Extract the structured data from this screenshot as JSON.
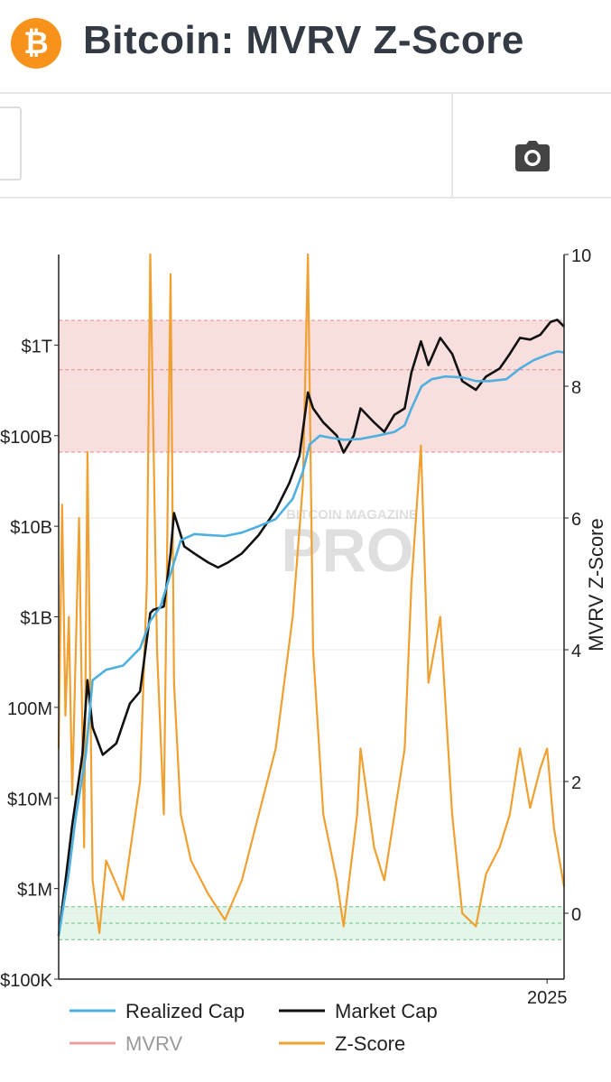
{
  "header": {
    "logo_glyph": "₿",
    "title": "Bitcoin: MVRV Z-Score"
  },
  "toolbar": {
    "camera_icon": "camera-icon"
  },
  "watermark": {
    "line1": "BITCOIN MAGAZINE",
    "line2": "PRO"
  },
  "colors": {
    "realized_cap": "#4fb0e0",
    "market_cap": "#111111",
    "mvrv": "#e8a0a0",
    "z_score": "#f0a030",
    "red_band": "#f9dede",
    "green_band": "#e4f5ea"
  },
  "chart_data": {
    "type": "line",
    "x_tick_labels": [
      "2025"
    ],
    "left_axis": {
      "scale": "log",
      "tick_labels": [
        "$1T",
        "$100B",
        "$10B",
        "$1B",
        "100M",
        "$10M",
        "$1M",
        "$100K"
      ],
      "ylim": [
        100000,
        10000000000000
      ]
    },
    "right_axis": {
      "label": "MVRV Z-Score",
      "tick_labels": [
        "10",
        "8",
        "6",
        "4",
        "2",
        "0"
      ],
      "ylim": [
        -1,
        10
      ]
    },
    "bands": [
      {
        "name": "overvalued",
        "from": 7,
        "to": 9
      },
      {
        "name": "undervalued",
        "from": -0.4,
        "to": 0.1
      }
    ],
    "x_range": [
      2010.6,
      2025.5
    ],
    "series": [
      {
        "name": "Realized Cap",
        "axis": "left",
        "x": [
          2010.6,
          2010.9,
          2011.1,
          2011.4,
          2011.6,
          2012.0,
          2012.5,
          2013.0,
          2013.3,
          2013.6,
          2013.9,
          2014.2,
          2014.6,
          2015.0,
          2015.5,
          2016.0,
          2016.5,
          2017.0,
          2017.5,
          2017.8,
          2018.0,
          2018.3,
          2018.6,
          2019.0,
          2019.5,
          2020.0,
          2020.5,
          2020.8,
          2021.0,
          2021.3,
          2021.6,
          2022.0,
          2022.5,
          2022.9,
          2023.3,
          2023.8,
          2024.2,
          2024.6,
          2025.0,
          2025.3,
          2025.5
        ],
        "y": [
          300000,
          1500000,
          6000000,
          30000000,
          200000000,
          260000000,
          290000000,
          450000000,
          900000000,
          1300000000,
          3000000000,
          7000000000,
          8200000000,
          8000000000,
          7800000000,
          8500000000,
          10000000000,
          12000000000,
          20000000000,
          40000000000,
          80000000000,
          100000000000,
          95000000000,
          90000000000,
          92000000000,
          100000000000,
          110000000000,
          130000000000,
          200000000000,
          350000000000,
          420000000000,
          450000000000,
          440000000000,
          400000000000,
          400000000000,
          420000000000,
          550000000000,
          680000000000,
          780000000000,
          850000000000,
          830000000000
        ]
      },
      {
        "name": "Market Cap",
        "axis": "left",
        "x": [
          2010.6,
          2010.8,
          2011.0,
          2011.3,
          2011.45,
          2011.6,
          2011.9,
          2012.3,
          2012.7,
          2013.0,
          2013.3,
          2013.4,
          2013.7,
          2013.9,
          2014.0,
          2014.3,
          2014.6,
          2015.0,
          2015.3,
          2015.6,
          2016.0,
          2016.5,
          2017.0,
          2017.4,
          2017.7,
          2017.95,
          2018.1,
          2018.4,
          2018.8,
          2019.0,
          2019.3,
          2019.5,
          2019.9,
          2020.2,
          2020.5,
          2020.8,
          2021.0,
          2021.28,
          2021.5,
          2021.85,
          2022.2,
          2022.5,
          2022.9,
          2023.2,
          2023.6,
          2023.9,
          2024.2,
          2024.5,
          2024.8,
          2025.1,
          2025.3,
          2025.5
        ],
        "y": [
          300000,
          1200000,
          5000000,
          30000000,
          200000000,
          60000000,
          30000000,
          40000000,
          110000000,
          150000000,
          1100000000,
          1200000000,
          1300000000,
          5000000000,
          14000000000,
          6000000000,
          5000000000,
          4000000000,
          3500000000,
          4000000000,
          5000000000,
          8000000000,
          15000000000,
          30000000000,
          60000000000,
          300000000000,
          200000000000,
          140000000000,
          100000000000,
          65000000000,
          100000000000,
          200000000000,
          140000000000,
          110000000000,
          170000000000,
          200000000000,
          500000000000,
          1100000000000,
          600000000000,
          1200000000000,
          800000000000,
          400000000000,
          320000000000,
          450000000000,
          550000000000,
          800000000000,
          1200000000000,
          1150000000000,
          1300000000000,
          1800000000000,
          1900000000000,
          1600000000000
        ]
      },
      {
        "name": "Z-Score",
        "axis": "right",
        "x": [
          2010.6,
          2010.7,
          2010.8,
          2010.9,
          2011.0,
          2011.2,
          2011.35,
          2011.45,
          2011.6,
          2011.8,
          2012.0,
          2012.5,
          2013.0,
          2013.2,
          2013.3,
          2013.5,
          2013.7,
          2013.9,
          2014.0,
          2014.2,
          2014.5,
          2015.0,
          2015.5,
          2016.0,
          2016.5,
          2017.0,
          2017.5,
          2017.8,
          2017.95,
          2018.1,
          2018.4,
          2018.8,
          2019.0,
          2019.4,
          2019.5,
          2019.9,
          2020.2,
          2020.5,
          2020.8,
          2021.0,
          2021.28,
          2021.5,
          2021.85,
          2022.2,
          2022.5,
          2022.9,
          2023.2,
          2023.6,
          2023.9,
          2024.2,
          2024.5,
          2024.8,
          2025.0,
          2025.2,
          2025.5
        ],
        "y": [
          2.5,
          6.2,
          3.0,
          4.5,
          1.8,
          6.0,
          1.0,
          7.0,
          0.5,
          -0.3,
          0.8,
          0.2,
          2.0,
          5.0,
          10.0,
          4.0,
          1.5,
          9.7,
          3.5,
          1.5,
          0.8,
          0.3,
          -0.1,
          0.5,
          1.5,
          2.5,
          4.5,
          6.5,
          10.0,
          4.0,
          1.5,
          0.5,
          -0.2,
          1.5,
          2.5,
          1.0,
          0.5,
          1.5,
          2.5,
          5.0,
          7.1,
          3.5,
          4.5,
          1.5,
          0.0,
          -0.2,
          0.6,
          1.0,
          1.5,
          2.5,
          1.6,
          2.2,
          2.5,
          1.3,
          0.4
        ]
      },
      {
        "name": "MVRV",
        "axis": "left",
        "x": [],
        "y": []
      }
    ],
    "legend": {
      "placement": "bottom",
      "entries": [
        "Realized Cap",
        "Market Cap",
        "MVRV",
        "Z-Score"
      ]
    }
  }
}
